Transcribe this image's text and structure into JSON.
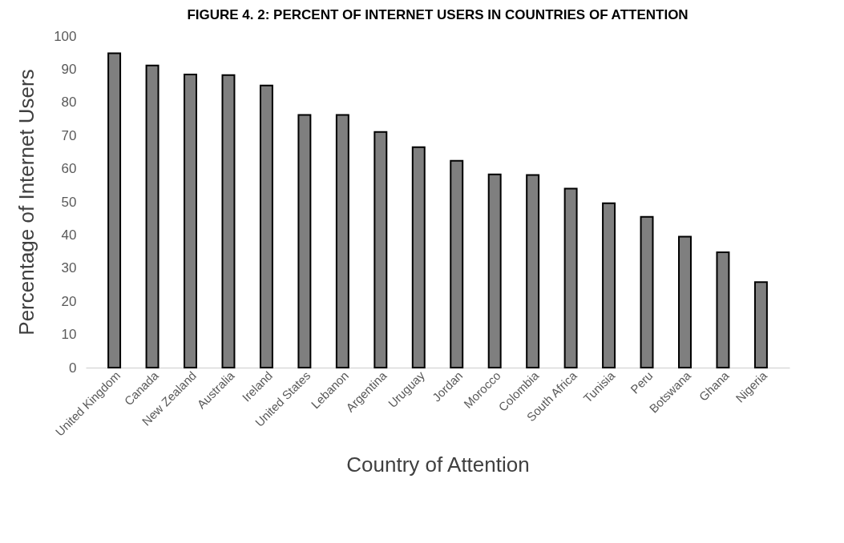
{
  "chart_data": {
    "type": "bar",
    "title": "FIGURE 4. 2: PERCENT OF INTERNET USERS IN COUNTRIES OF ATTENTION",
    "xlabel": "Country of Attention",
    "ylabel": "Percentage of Internet Users",
    "categories": [
      "United Kingdom",
      "Canada",
      "New Zealand",
      "Australia",
      "Ireland",
      "United States",
      "Lebanon",
      "Argentina",
      "Uruguay",
      "Jordan",
      "Morocco",
      "Colombia",
      "South Africa",
      "Tunisia",
      "Peru",
      "Botswana",
      "Ghana",
      "Nigeria"
    ],
    "values": [
      94.8,
      91.1,
      88.4,
      88.2,
      85.1,
      76.2,
      76.2,
      71.1,
      66.5,
      62.4,
      58.3,
      58.1,
      54.0,
      49.6,
      45.5,
      39.5,
      34.8,
      25.8
    ],
    "color": "#7f7f7f",
    "ylim": [
      0,
      100
    ],
    "yticks": [
      0,
      10,
      20,
      30,
      40,
      50,
      60,
      70,
      80,
      90,
      100
    ],
    "grid": false
  }
}
